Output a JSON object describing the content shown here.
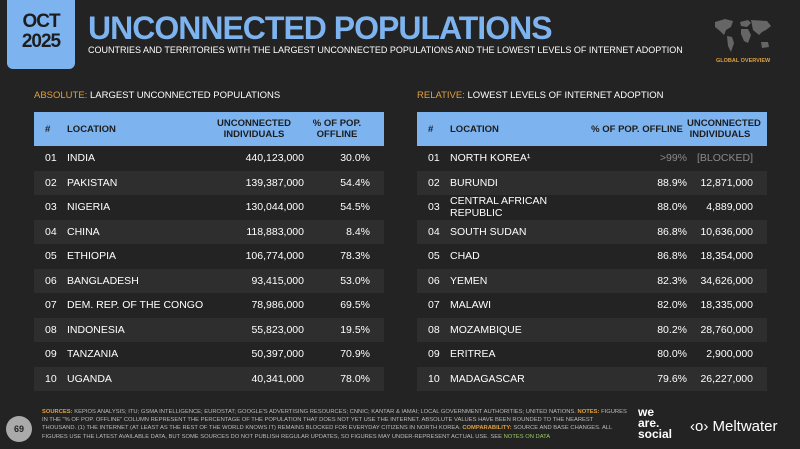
{
  "header": {
    "date_month": "OCT",
    "date_year": "2025",
    "title": "UNCONNECTED POPULATIONS",
    "subtitle": "COUNTRIES AND TERRITORIES WITH THE LARGEST UNCONNECTED POPULATIONS AND THE LOWEST LEVELS OF INTERNET ADOPTION",
    "badge": "GLOBAL OVERVIEW"
  },
  "absolute": {
    "key": "ABSOLUTE:",
    "label": "LARGEST UNCONNECTED POPULATIONS",
    "columns": [
      "#",
      "LOCATION",
      "UNCONNECTED INDIVIDUALS",
      "% OF POP. OFFLINE"
    ],
    "rows": [
      [
        "01",
        "INDIA",
        "440,123,000",
        "30.0%"
      ],
      [
        "02",
        "PAKISTAN",
        "139,387,000",
        "54.4%"
      ],
      [
        "03",
        "NIGERIA",
        "130,044,000",
        "54.5%"
      ],
      [
        "04",
        "CHINA",
        "118,883,000",
        "8.4%"
      ],
      [
        "05",
        "ETHIOPIA",
        "106,774,000",
        "78.3%"
      ],
      [
        "06",
        "BANGLADESH",
        "93,415,000",
        "53.0%"
      ],
      [
        "07",
        "DEM. REP. OF THE CONGO",
        "78,986,000",
        "69.5%"
      ],
      [
        "08",
        "INDONESIA",
        "55,823,000",
        "19.5%"
      ],
      [
        "09",
        "TANZANIA",
        "50,397,000",
        "70.9%"
      ],
      [
        "10",
        "UGANDA",
        "40,341,000",
        "78.0%"
      ]
    ]
  },
  "relative": {
    "key": "RELATIVE:",
    "label": "LOWEST LEVELS OF INTERNET ADOPTION",
    "columns": [
      "#",
      "LOCATION",
      "% OF POP. OFFLINE",
      "UNCONNECTED INDIVIDUALS"
    ],
    "rows": [
      [
        "01",
        "NORTH KOREA¹",
        ">99%",
        "[BLOCKED]"
      ],
      [
        "02",
        "BURUNDI",
        "88.9%",
        "12,871,000"
      ],
      [
        "03",
        "CENTRAL AFRICAN REPUBLIC",
        "88.0%",
        "4,889,000"
      ],
      [
        "04",
        "SOUTH SUDAN",
        "86.8%",
        "10,636,000"
      ],
      [
        "05",
        "CHAD",
        "86.8%",
        "18,354,000"
      ],
      [
        "06",
        "YEMEN",
        "82.3%",
        "34,626,000"
      ],
      [
        "07",
        "MALAWI",
        "82.0%",
        "18,335,000"
      ],
      [
        "08",
        "MOZAMBIQUE",
        "80.2%",
        "28,760,000"
      ],
      [
        "09",
        "ERITREA",
        "80.0%",
        "2,900,000"
      ],
      [
        "10",
        "MADAGASCAR",
        "79.6%",
        "26,227,000"
      ]
    ]
  },
  "footer": {
    "page": "69",
    "sources_key": "SOURCES:",
    "sources": "KEPIOS ANALYSIS; ITU; GSMA INTELLIGENCE; EUROSTAT; GOOGLE'S ADVERTISING RESOURCES; CNNIC; KANTAR & IAMAI; LOCAL GOVERNMENT AUTHORITIES; UNITED NATIONS.",
    "notes_key": "NOTES:",
    "notes": "FIGURES IN THE \"% OF POP. OFFLINE\" COLUMN REPRESENT THE PERCENTAGE OF THE POPULATION THAT DOES NOT YET USE THE INTERNET. ABSOLUTE VALUES HAVE BEEN ROUNDED TO THE NEAREST THOUSAND. (1) THE INTERNET (AT LEAST AS THE REST OF THE WORLD KNOWS IT) REMAINS BLOCKED FOR EVERYDAY CITIZENS IN NORTH KOREA.",
    "comp_key": "COMPARABILITY:",
    "comp": "SOURCE AND BASE CHANGES. ALL FIGURES USE THE LATEST AVAILABLE DATA, BUT SOME SOURCES DO NOT PUBLISH REGULAR UPDATES, SO FIGURES MAY UNDER-REPRESENT ACTUAL USE. SEE",
    "link": "NOTES ON DATA",
    "logo1": "we are social",
    "logo2": "Meltwater"
  }
}
